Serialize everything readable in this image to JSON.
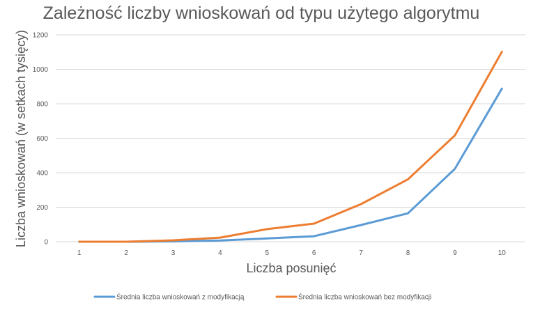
{
  "chart_data": {
    "type": "line",
    "title": "Zależność liczby wnioskowań od typu użytego algorytmu",
    "xlabel": "Liczba posunięć",
    "ylabel": "Liczba wnioskowań (w setkach tysięcy)",
    "x": [
      "1",
      "2",
      "3",
      "4",
      "5",
      "6",
      "7",
      "8",
      "9",
      "10"
    ],
    "ylim": [
      0,
      1200
    ],
    "yticks": [
      0,
      200,
      400,
      600,
      800,
      1000,
      1200
    ],
    "grid": true,
    "legend_position": "bottom",
    "series": [
      {
        "name": "Średnia liczba wnioskowań z modyfikacją",
        "color": "#5b9bd5",
        "values": [
          0,
          0,
          2,
          7,
          19,
          32,
          97,
          165,
          423,
          888
        ]
      },
      {
        "name": "Średnia liczba wnioskowań bez modyfikacji",
        "color": "#ed7d31",
        "values": [
          0,
          0,
          8,
          24,
          73,
          105,
          218,
          362,
          617,
          1102
        ]
      }
    ]
  }
}
